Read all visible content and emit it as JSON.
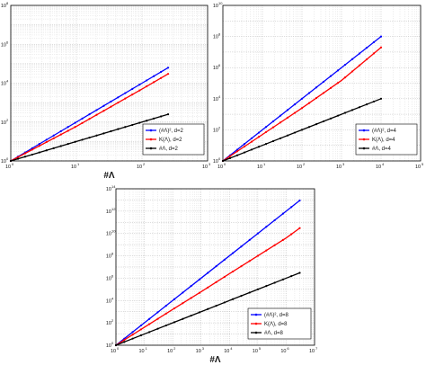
{
  "chart_data": [
    {
      "type": "line",
      "xscale": "log",
      "yscale": "log",
      "xlim": [
        1,
        1000
      ],
      "ylim": [
        1,
        100000000
      ],
      "xlabel": "#Λ",
      "ylabel": "",
      "grid": true,
      "legend_position": "bottom-right",
      "x_tick_labels": [
        "10",
        "10",
        "10",
        "10"
      ],
      "x_tick_exponents": [
        "0",
        "1",
        "2",
        "3"
      ],
      "y_tick_labels": [
        "10",
        "10",
        "10",
        "10",
        "10"
      ],
      "y_tick_exponents": [
        "0",
        "2",
        "4",
        "6",
        "8"
      ],
      "series": [
        {
          "name": "(#Λ)², d=2",
          "color": "#0000ff",
          "x": [
            1,
            10,
            100,
            250
          ],
          "y": [
            1,
            100,
            10000,
            62500
          ]
        },
        {
          "name": "K(Λ), d=2",
          "color": "#ff0000",
          "x": [
            1,
            10,
            100,
            250
          ],
          "y": [
            1,
            60,
            5000,
            30000
          ]
        },
        {
          "name": "#Λ, d=2",
          "color": "#000000",
          "x": [
            1,
            10,
            100,
            250
          ],
          "y": [
            1,
            10,
            100,
            250
          ]
        }
      ]
    },
    {
      "type": "line",
      "xscale": "log",
      "yscale": "log",
      "xlim": [
        1,
        100000
      ],
      "ylim": [
        1,
        10000000000
      ],
      "xlabel": "",
      "ylabel": "",
      "grid": true,
      "legend_position": "bottom-right",
      "x_tick_labels": [
        "10",
        "10",
        "10",
        "10",
        "10",
        "10"
      ],
      "x_tick_exponents": [
        "0",
        "1",
        "2",
        "3",
        "4",
        "5"
      ],
      "y_tick_labels": [
        "10",
        "10",
        "10",
        "10",
        "10",
        "10"
      ],
      "y_tick_exponents": [
        "0",
        "2",
        "4",
        "6",
        "8",
        "10"
      ],
      "series": [
        {
          "name": "(#Λ)², d=4",
          "color": "#0000ff",
          "x": [
            1,
            10,
            100,
            1000,
            10000
          ],
          "y": [
            1,
            100,
            10000,
            1000000,
            100000000
          ]
        },
        {
          "name": "K(Λ), d=4",
          "color": "#ff0000",
          "x": [
            1,
            10,
            100,
            1000,
            10000
          ],
          "y": [
            1,
            50,
            2500,
            150000,
            20000000
          ]
        },
        {
          "name": "#Λ, d=4",
          "color": "#000000",
          "x": [
            1,
            10,
            100,
            1000,
            10000
          ],
          "y": [
            1,
            10,
            100,
            1000,
            10000
          ]
        }
      ]
    },
    {
      "type": "line",
      "xscale": "log",
      "yscale": "log",
      "xlim": [
        1,
        10000000
      ],
      "ylim": [
        1,
        100000000000000
      ],
      "xlabel": "#Λ",
      "ylabel": "",
      "grid": true,
      "legend_position": "bottom-right",
      "x_tick_labels": [
        "10",
        "10",
        "10",
        "10",
        "10",
        "10",
        "10",
        "10"
      ],
      "x_tick_exponents": [
        "0",
        "1",
        "2",
        "3",
        "4",
        "5",
        "6",
        "7"
      ],
      "y_tick_labels": [
        "10",
        "10",
        "10",
        "10",
        "10",
        "10",
        "10",
        "10"
      ],
      "y_tick_exponents": [
        "0",
        "2",
        "4",
        "6",
        "8",
        "10",
        "12",
        "14"
      ],
      "series": [
        {
          "name": "(#Λ)², d=8",
          "color": "#0000ff",
          "x": [
            1,
            10,
            100,
            1000,
            10000,
            100000,
            1000000,
            3000000
          ],
          "y": [
            1,
            100,
            10000,
            1000000,
            100000000,
            10000000000,
            1000000000000,
            9000000000000
          ]
        },
        {
          "name": "K(Λ), d=8",
          "color": "#ff0000",
          "x": [
            1,
            10,
            100,
            1000,
            10000,
            100000,
            1000000,
            3000000
          ],
          "y": [
            1,
            40,
            1600,
            60000,
            2500000,
            100000000,
            4000000000,
            30000000000
          ]
        },
        {
          "name": "#Λ, d=8",
          "color": "#000000",
          "x": [
            1,
            10,
            100,
            1000,
            10000,
            100000,
            1000000,
            3000000
          ],
          "y": [
            1,
            10,
            100,
            1000,
            10000,
            100000,
            1000000,
            3000000
          ]
        }
      ]
    }
  ]
}
